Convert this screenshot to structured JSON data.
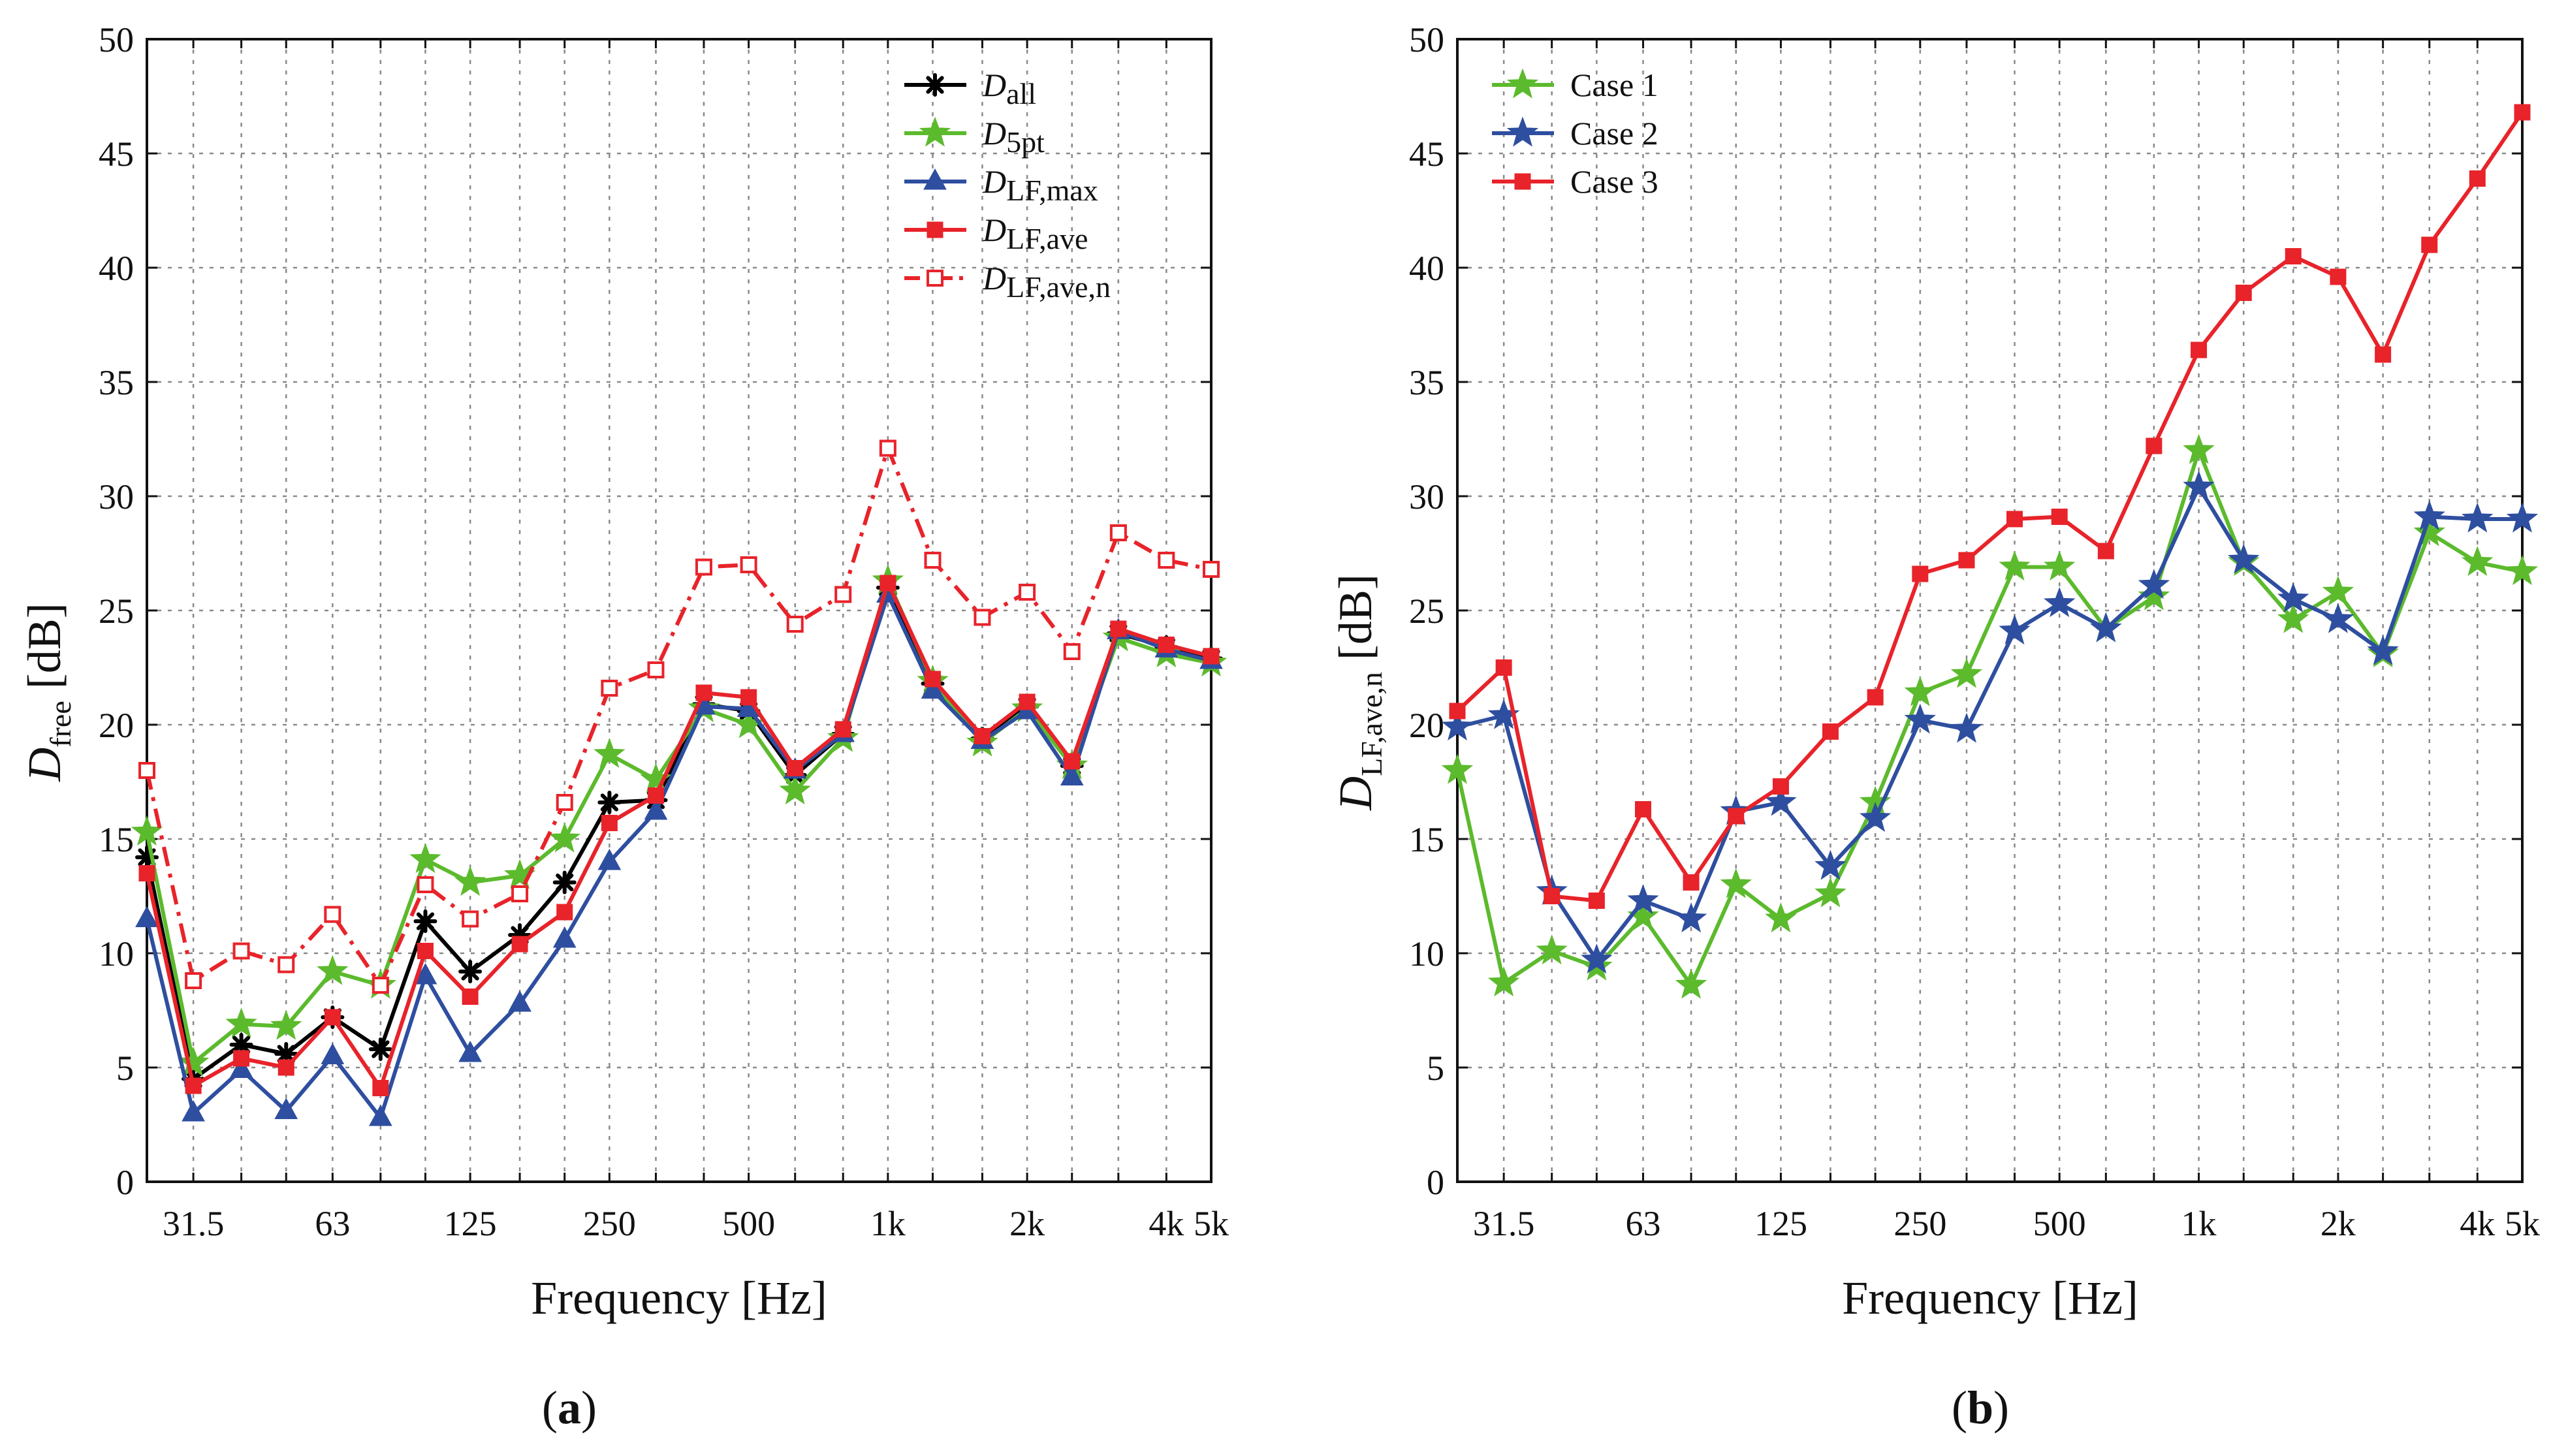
{
  "figure": {
    "panels": [
      {
        "label_open": "(",
        "label_letter": "a",
        "label_close": ")",
        "xlabel": "Frequency [Hz]",
        "ylabel": {
          "main": "D",
          "sub": "free",
          "unit": "[dB]"
        }
      },
      {
        "label_open": "(",
        "label_letter": "b",
        "label_close": ")",
        "xlabel": "Frequency [Hz]",
        "ylabel": {
          "main": "D",
          "sub": "LF,ave,n",
          "unit": "[dB]"
        }
      }
    ]
  },
  "chart_data": [
    {
      "type": "line",
      "x_scale": "log",
      "x_unit": "Hz",
      "x": [
        25,
        31.5,
        40,
        50,
        63,
        80,
        100,
        125,
        160,
        200,
        250,
        315,
        400,
        500,
        630,
        800,
        1000,
        1250,
        1600,
        2000,
        2500,
        3150,
        4000,
        5000
      ],
      "xticks": [
        {
          "value": 31.5,
          "label": "31.5"
        },
        {
          "value": 63,
          "label": "63"
        },
        {
          "value": 125,
          "label": "125"
        },
        {
          "value": 250,
          "label": "250"
        },
        {
          "value": 500,
          "label": "500"
        },
        {
          "value": 1000,
          "label": "1k"
        },
        {
          "value": 2000,
          "label": "2k"
        },
        {
          "value": 4000,
          "label": "4k"
        },
        {
          "value": 5000,
          "label": "5k"
        }
      ],
      "ylim": [
        0,
        50
      ],
      "yticks": [
        0,
        5,
        10,
        15,
        20,
        25,
        30,
        35,
        40,
        45,
        50
      ],
      "grid": true,
      "legend_position": "top-right",
      "series": [
        {
          "name": "D",
          "name_sub": "all",
          "color": "#000000",
          "marker": "asterisk",
          "dash": "solid",
          "values": [
            14.2,
            4.5,
            6.0,
            5.6,
            7.2,
            5.8,
            11.4,
            9.2,
            10.8,
            13.1,
            16.6,
            16.7,
            20.9,
            20.6,
            17.8,
            19.6,
            26.0,
            21.8,
            19.4,
            20.8,
            18.2,
            24.0,
            23.4,
            22.9
          ]
        },
        {
          "name": "D",
          "name_sub": "5pt",
          "color": "#5cba2d",
          "marker": "star",
          "dash": "solid",
          "values": [
            15.3,
            5.2,
            6.9,
            6.8,
            9.2,
            8.6,
            14.1,
            13.1,
            13.4,
            15.0,
            18.7,
            17.6,
            20.7,
            20.0,
            17.1,
            19.4,
            26.3,
            21.9,
            19.2,
            20.7,
            18.2,
            23.8,
            23.1,
            22.7
          ]
        },
        {
          "name": "D",
          "name_sub": "LF,max",
          "color": "#2e4e9f",
          "marker": "triangle",
          "dash": "solid",
          "values": [
            11.5,
            3.0,
            4.9,
            3.1,
            5.5,
            2.8,
            9.0,
            5.6,
            7.8,
            10.6,
            14.0,
            16.2,
            20.8,
            20.7,
            18.0,
            19.6,
            25.7,
            21.5,
            19.3,
            20.6,
            17.7,
            24.1,
            23.3,
            22.8
          ]
        },
        {
          "name": "D",
          "name_sub": "LF,ave",
          "color": "#e8232a",
          "marker": "square",
          "dash": "solid",
          "values": [
            13.5,
            4.2,
            5.4,
            5.0,
            7.2,
            4.1,
            10.1,
            8.1,
            10.4,
            11.8,
            15.7,
            16.9,
            21.4,
            21.2,
            18.1,
            19.8,
            26.2,
            22.0,
            19.5,
            21.0,
            18.4,
            24.2,
            23.5,
            23.0
          ]
        },
        {
          "name": "D",
          "name_sub": "LF,ave,n",
          "color": "#e8232a",
          "marker": "square-open",
          "dash": "dashdot",
          "values": [
            18.0,
            8.8,
            10.1,
            9.5,
            11.7,
            8.6,
            13.0,
            11.5,
            12.6,
            16.6,
            21.6,
            22.4,
            26.9,
            27.0,
            24.4,
            25.7,
            32.1,
            27.2,
            24.7,
            25.8,
            23.2,
            28.4,
            27.2,
            26.8
          ]
        }
      ]
    },
    {
      "type": "line",
      "x_scale": "log",
      "x_unit": "Hz",
      "x": [
        25,
        31.5,
        40,
        50,
        63,
        80,
        100,
        125,
        160,
        200,
        250,
        315,
        400,
        500,
        630,
        800,
        1000,
        1250,
        1600,
        2000,
        2500,
        3150,
        4000,
        5000
      ],
      "xticks": [
        {
          "value": 31.5,
          "label": "31.5"
        },
        {
          "value": 63,
          "label": "63"
        },
        {
          "value": 125,
          "label": "125"
        },
        {
          "value": 250,
          "label": "250"
        },
        {
          "value": 500,
          "label": "500"
        },
        {
          "value": 1000,
          "label": "1k"
        },
        {
          "value": 2000,
          "label": "2k"
        },
        {
          "value": 4000,
          "label": "4k"
        },
        {
          "value": 5000,
          "label": "5k"
        }
      ],
      "ylim": [
        0,
        50
      ],
      "yticks": [
        0,
        5,
        10,
        15,
        20,
        25,
        30,
        35,
        40,
        45,
        50
      ],
      "grid": true,
      "legend_position": "top-left",
      "series": [
        {
          "name": "Case 1",
          "name_sub": "",
          "color": "#5cba2d",
          "marker": "star",
          "dash": "solid",
          "values": [
            18.0,
            8.7,
            10.1,
            9.4,
            11.6,
            8.6,
            13.0,
            11.5,
            12.6,
            16.6,
            21.4,
            22.2,
            26.9,
            26.9,
            24.2,
            25.6,
            32.0,
            27.1,
            24.6,
            25.8,
            23.1,
            28.4,
            27.1,
            26.7
          ]
        },
        {
          "name": "Case 2",
          "name_sub": "",
          "color": "#2e4e9f",
          "marker": "star",
          "dash": "solid",
          "values": [
            19.9,
            20.4,
            12.7,
            9.7,
            12.3,
            11.5,
            16.2,
            16.6,
            13.8,
            15.9,
            20.2,
            19.8,
            24.1,
            25.3,
            24.2,
            26.1,
            30.4,
            27.2,
            25.5,
            24.6,
            23.2,
            29.1,
            29.0,
            29.0
          ]
        },
        {
          "name": "Case 3",
          "name_sub": "",
          "color": "#e8232a",
          "marker": "square",
          "dash": "solid",
          "values": [
            20.6,
            22.5,
            12.5,
            12.3,
            16.3,
            13.1,
            16.0,
            17.3,
            19.7,
            21.2,
            26.6,
            27.2,
            29.0,
            29.1,
            27.6,
            32.2,
            36.4,
            38.9,
            40.5,
            39.6,
            36.2,
            41.0,
            43.9,
            46.8
          ]
        }
      ]
    }
  ]
}
